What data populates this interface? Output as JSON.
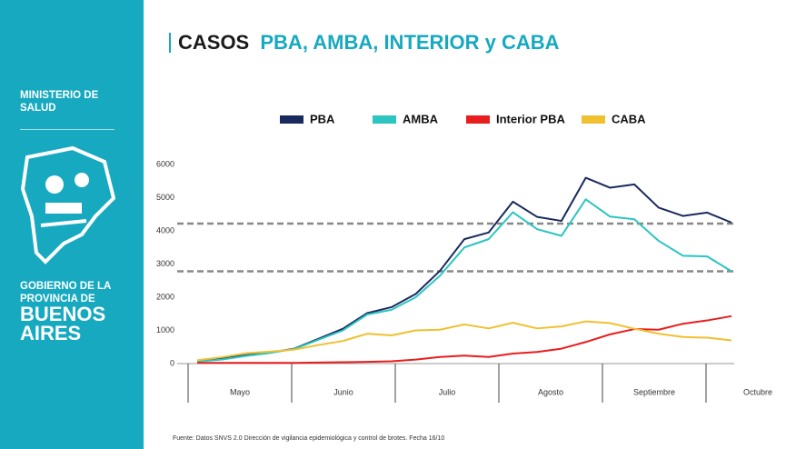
{
  "sidebar": {
    "ministry": "MINISTERIO DE SALUD",
    "government": "GOBIERNO DE LA PROVINCIA DE",
    "province": "BUENOS AIRES"
  },
  "header": {
    "title": "CASOS",
    "subtitle": "PBA, AMBA, INTERIOR y CABA"
  },
  "source": "Fuente: Datos SNVS 2.0 Dirección de vigilancia epidemiológica y control de brotes. Fecha 16/10",
  "chart_data": {
    "type": "line",
    "categories": [
      null,
      null,
      null,
      null,
      null,
      null,
      null,
      null,
      null,
      null,
      null,
      null,
      null,
      null,
      null,
      null,
      null,
      null,
      null,
      null,
      null,
      null,
      null
    ],
    "x_groups": [
      "Mayo",
      "Junio",
      "Julio",
      "Agosto",
      "Septiembre",
      "Octubre"
    ],
    "series": [
      {
        "name": "PBA",
        "color": "#1b2a5e",
        "values": [
          80,
          150,
          250,
          330,
          450,
          750,
          1050,
          1520,
          1700,
          2100,
          2800,
          3750,
          3950,
          4880,
          4420,
          4300,
          5600,
          5300,
          5400,
          4700,
          4450,
          4550,
          4250
        ]
      },
      {
        "name": "AMBA",
        "color": "#2cc5c0",
        "values": [
          60,
          120,
          230,
          320,
          440,
          720,
          1000,
          1480,
          1620,
          2000,
          2650,
          3500,
          3750,
          4560,
          4050,
          3850,
          4950,
          4430,
          4350,
          3700,
          3250,
          3230,
          2780
        ]
      },
      {
        "name": "Interior PBA",
        "color": "#e81d1d",
        "values": [
          20,
          20,
          20,
          20,
          20,
          30,
          40,
          50,
          70,
          120,
          200,
          240,
          200,
          300,
          350,
          450,
          650,
          880,
          1040,
          1020,
          1200,
          1300,
          1430
        ]
      },
      {
        "name": "CABA",
        "color": "#f0c030",
        "values": [
          100,
          190,
          310,
          360,
          420,
          560,
          680,
          900,
          850,
          1000,
          1020,
          1180,
          1060,
          1230,
          1060,
          1120,
          1270,
          1220,
          1050,
          900,
          800,
          780,
          700
        ]
      }
    ],
    "reference_lines": [
      4220,
      2780
    ],
    "ylim": [
      0,
      6000
    ],
    "yticks": [
      0,
      1000,
      2000,
      3000,
      4000,
      5000,
      6000
    ],
    "grid": false
  }
}
